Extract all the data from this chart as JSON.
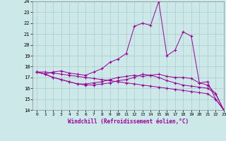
{
  "background_color": "#cce8e8",
  "grid_color": "#aacccc",
  "line_color": "#990099",
  "marker": "+",
  "xlim": [
    -0.5,
    23
  ],
  "ylim": [
    14,
    24
  ],
  "yticks": [
    14,
    15,
    16,
    17,
    18,
    19,
    20,
    21,
    22,
    23,
    24
  ],
  "xticks": [
    0,
    1,
    2,
    3,
    4,
    5,
    6,
    7,
    8,
    9,
    10,
    11,
    12,
    13,
    14,
    15,
    16,
    17,
    18,
    19,
    20,
    21,
    22,
    23
  ],
  "xlabel": "Windchill (Refroidissement éolien,°C)",
  "series": [
    [
      17.5,
      17.3,
      17.5,
      17.6,
      17.4,
      17.3,
      17.2,
      17.5,
      17.8,
      18.4,
      18.7,
      19.2,
      21.7,
      22.0,
      21.8,
      24.0,
      19.0,
      19.5,
      21.2,
      20.8,
      16.5,
      16.6,
      15.0,
      14.0
    ],
    [
      17.5,
      17.3,
      17.0,
      16.8,
      16.6,
      16.4,
      16.4,
      16.5,
      16.6,
      16.8,
      17.0,
      17.1,
      17.2,
      17.1,
      17.2,
      17.3,
      17.1,
      17.0,
      17.0,
      16.9,
      16.5,
      16.3,
      15.5,
      14.0
    ],
    [
      17.5,
      17.5,
      17.4,
      17.3,
      17.2,
      17.1,
      17.0,
      16.9,
      16.8,
      16.7,
      16.6,
      16.5,
      16.4,
      16.3,
      16.2,
      16.1,
      16.0,
      15.9,
      15.8,
      15.7,
      15.6,
      15.5,
      15.0,
      14.0
    ],
    [
      17.5,
      17.3,
      17.0,
      16.8,
      16.6,
      16.4,
      16.3,
      16.3,
      16.4,
      16.5,
      16.7,
      16.8,
      17.0,
      17.3,
      17.2,
      17.0,
      16.7,
      16.5,
      16.3,
      16.2,
      16.1,
      16.0,
      15.5,
      14.0
    ]
  ]
}
